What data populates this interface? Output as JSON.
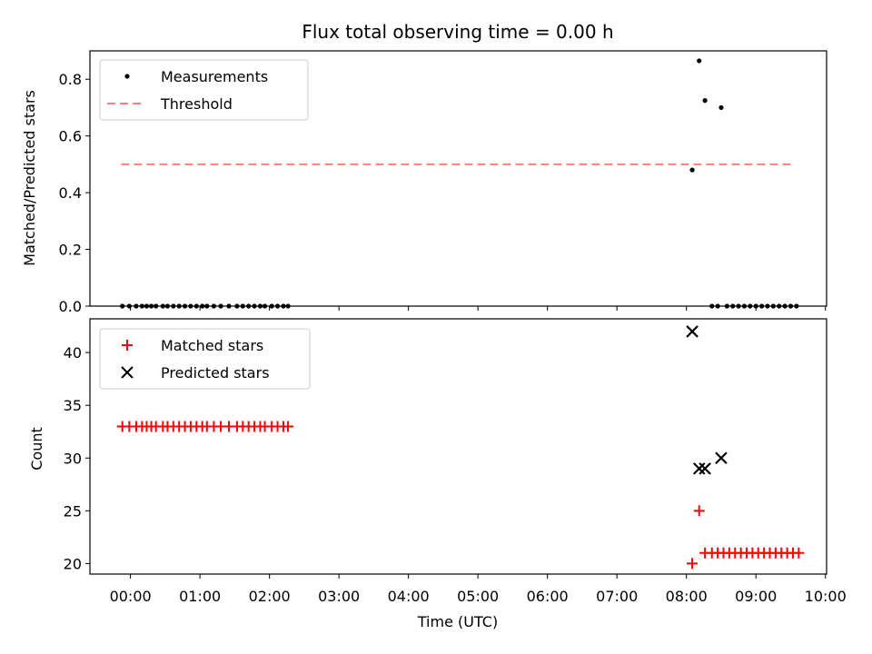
{
  "title": "Flux total observing time = 0.00 h",
  "xlabel": "Time (UTC)",
  "x_ticks": [
    "00:00",
    "01:00",
    "02:00",
    "03:00",
    "04:00",
    "05:00",
    "06:00",
    "07:00",
    "08:00",
    "09:00",
    "10:00"
  ],
  "colors": {
    "measurements": "#000000",
    "threshold": "#ff7f7f",
    "matched": "#ff0000",
    "predicted": "#000000"
  },
  "chart_data": [
    {
      "type": "scatter",
      "ylabel": "Matched/Predicted stars",
      "xlim": [
        "-00:35",
        "10:01"
      ],
      "ylim": [
        0,
        0.9
      ],
      "y_ticks": [
        "0.0",
        "0.2",
        "0.4",
        "0.6",
        "0.8"
      ],
      "legend": {
        "placement": "top-left",
        "entries": [
          "Measurements",
          "Threshold"
        ]
      },
      "threshold": {
        "name": "Threshold",
        "value": 0.5,
        "x_range": [
          "-00:08",
          "09:34"
        ]
      },
      "series": [
        {
          "name": "Measurements",
          "x": [
            "-00:07",
            "-00:01",
            "00:05",
            "00:10",
            "00:14",
            "00:18",
            "00:22",
            "00:28",
            "00:32",
            "00:37",
            "00:42",
            "00:47",
            "00:52",
            "00:57",
            "01:02",
            "01:06",
            "01:12",
            "01:18",
            "01:25",
            "01:32",
            "01:37",
            "01:42",
            "01:47",
            "01:52",
            "01:56",
            "02:02",
            "02:07",
            "02:12",
            "02:16",
            "08:05",
            "08:11",
            "08:16",
            "08:22",
            "08:27",
            "08:30",
            "08:35",
            "08:40",
            "08:45",
            "08:50",
            "08:55",
            "09:00",
            "09:05",
            "09:10",
            "09:15",
            "09:20",
            "09:25",
            "09:30",
            "09:35"
          ],
          "y": [
            0,
            0,
            0,
            0,
            0,
            0,
            0,
            0,
            0,
            0,
            0,
            0,
            0,
            0,
            0,
            0,
            0,
            0,
            0,
            0,
            0,
            0,
            0,
            0,
            0,
            0,
            0,
            0,
            0,
            0.48,
            0.865,
            0.725,
            0,
            0,
            0.7,
            0,
            0,
            0,
            0,
            0,
            0,
            0,
            0,
            0,
            0,
            0,
            0,
            0
          ]
        }
      ]
    },
    {
      "type": "scatter",
      "ylabel": "Count",
      "xlim": [
        "-00:35",
        "10:01"
      ],
      "ylim": [
        19,
        43.2
      ],
      "y_ticks": [
        "20",
        "25",
        "30",
        "35",
        "40"
      ],
      "legend": {
        "placement": "top-left",
        "entries": [
          "Matched stars",
          "Predicted stars"
        ]
      },
      "series": [
        {
          "name": "Matched stars",
          "marker": "plus",
          "x": [
            "-00:07",
            "-00:01",
            "00:05",
            "00:10",
            "00:14",
            "00:18",
            "00:22",
            "00:28",
            "00:32",
            "00:37",
            "00:42",
            "00:47",
            "00:52",
            "00:57",
            "01:02",
            "01:06",
            "01:12",
            "01:18",
            "01:25",
            "01:32",
            "01:37",
            "01:42",
            "01:47",
            "01:52",
            "01:56",
            "02:02",
            "02:07",
            "02:12",
            "02:16",
            "08:05",
            "08:11",
            "08:16",
            "08:22",
            "08:27",
            "08:32",
            "08:37",
            "08:42",
            "08:47",
            "08:52",
            "08:57",
            "09:02",
            "09:07",
            "09:12",
            "09:17",
            "09:22",
            "09:27",
            "09:32",
            "09:37"
          ],
          "y": [
            33,
            33,
            33,
            33,
            33,
            33,
            33,
            33,
            33,
            33,
            33,
            33,
            33,
            33,
            33,
            33,
            33,
            33,
            33,
            33,
            33,
            33,
            33,
            33,
            33,
            33,
            33,
            33,
            33,
            20,
            25,
            21,
            21,
            21,
            21,
            21,
            21,
            21,
            21,
            21,
            21,
            21,
            21,
            21,
            21,
            21,
            21,
            21
          ]
        },
        {
          "name": "Predicted stars",
          "marker": "x",
          "x": [
            "08:05",
            "08:11",
            "08:16",
            "08:30"
          ],
          "y": [
            42,
            29,
            29,
            30
          ]
        }
      ]
    }
  ]
}
